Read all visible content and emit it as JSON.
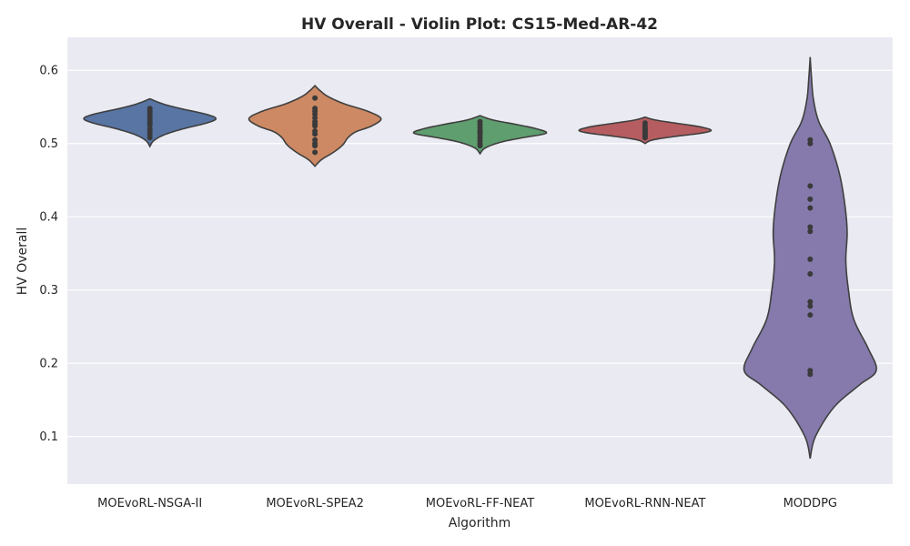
{
  "chart_data": {
    "type": "violin",
    "title": "HV Overall - Violin Plot: CS15-Med-AR-42",
    "xlabel": "Algorithm",
    "ylabel": "HV Overall",
    "ylim": [
      0.035,
      0.645
    ],
    "yticks": [
      "0.1",
      "0.2",
      "0.3",
      "0.4",
      "0.5",
      "0.6"
    ],
    "grid": true,
    "legend": "none",
    "background": "#eaeaf2",
    "series": [
      {
        "name": "MOEvoRL-NSGA-II",
        "color": "#5875a4",
        "range": [
          0.496,
          0.561
        ],
        "density": [
          [
            0.496,
            0.0
          ],
          [
            0.504,
            0.06
          ],
          [
            0.512,
            0.22
          ],
          [
            0.52,
            0.5
          ],
          [
            0.528,
            0.86
          ],
          [
            0.534,
            1.0
          ],
          [
            0.54,
            0.85
          ],
          [
            0.548,
            0.45
          ],
          [
            0.554,
            0.2
          ],
          [
            0.561,
            0.0
          ]
        ],
        "points": [
          0.548,
          0.544,
          0.54,
          0.537,
          0.534,
          0.531,
          0.528,
          0.525,
          0.52,
          0.516,
          0.512,
          0.508
        ]
      },
      {
        "name": "MOEvoRL-SPEA2",
        "color": "#cc8963",
        "range": [
          0.469,
          0.579
        ],
        "density": [
          [
            0.469,
            0.0
          ],
          [
            0.478,
            0.1
          ],
          [
            0.488,
            0.28
          ],
          [
            0.498,
            0.42
          ],
          [
            0.508,
            0.5
          ],
          [
            0.516,
            0.62
          ],
          [
            0.524,
            0.86
          ],
          [
            0.534,
            1.0
          ],
          [
            0.544,
            0.8
          ],
          [
            0.554,
            0.45
          ],
          [
            0.564,
            0.2
          ],
          [
            0.572,
            0.08
          ],
          [
            0.579,
            0.0
          ]
        ],
        "points": [
          0.562,
          0.548,
          0.544,
          0.54,
          0.535,
          0.53,
          0.527,
          0.524,
          0.517,
          0.513,
          0.505,
          0.5,
          0.497,
          0.488
        ]
      },
      {
        "name": "MOEvoRL-FF-NEAT",
        "color": "#5f9e6e",
        "range": [
          0.486,
          0.538
        ],
        "density": [
          [
            0.486,
            0.0
          ],
          [
            0.494,
            0.08
          ],
          [
            0.502,
            0.32
          ],
          [
            0.508,
            0.65
          ],
          [
            0.514,
            1.0
          ],
          [
            0.52,
            0.86
          ],
          [
            0.526,
            0.55
          ],
          [
            0.532,
            0.2
          ],
          [
            0.538,
            0.0
          ]
        ],
        "points": [
          0.53,
          0.526,
          0.522,
          0.518,
          0.515,
          0.512,
          0.508,
          0.504,
          0.5,
          0.497
        ]
      },
      {
        "name": "MOEvoRL-RNN-NEAT",
        "color": "#b55d60",
        "range": [
          0.5,
          0.536
        ],
        "density": [
          [
            0.5,
            0.0
          ],
          [
            0.505,
            0.12
          ],
          [
            0.51,
            0.48
          ],
          [
            0.514,
            0.84
          ],
          [
            0.518,
            1.0
          ],
          [
            0.523,
            0.82
          ],
          [
            0.528,
            0.45
          ],
          [
            0.532,
            0.16
          ],
          [
            0.536,
            0.0
          ]
        ],
        "points": [
          0.528,
          0.524,
          0.521,
          0.519,
          0.517,
          0.515,
          0.513,
          0.51,
          0.508
        ]
      },
      {
        "name": "MODDPG",
        "color": "#857aab",
        "range": [
          0.07,
          0.618
        ],
        "density": [
          [
            0.07,
            0.0
          ],
          [
            0.1,
            0.08
          ],
          [
            0.14,
            0.36
          ],
          [
            0.17,
            0.74
          ],
          [
            0.19,
            1.0
          ],
          [
            0.22,
            0.88
          ],
          [
            0.26,
            0.66
          ],
          [
            0.3,
            0.58
          ],
          [
            0.34,
            0.54
          ],
          [
            0.38,
            0.56
          ],
          [
            0.42,
            0.52
          ],
          [
            0.46,
            0.44
          ],
          [
            0.5,
            0.3
          ],
          [
            0.53,
            0.13
          ],
          [
            0.56,
            0.05
          ],
          [
            0.59,
            0.02
          ],
          [
            0.618,
            0.0
          ]
        ],
        "points": [
          0.505,
          0.5,
          0.442,
          0.424,
          0.412,
          0.386,
          0.38,
          0.342,
          0.322,
          0.284,
          0.278,
          0.266,
          0.19,
          0.185
        ]
      }
    ]
  }
}
